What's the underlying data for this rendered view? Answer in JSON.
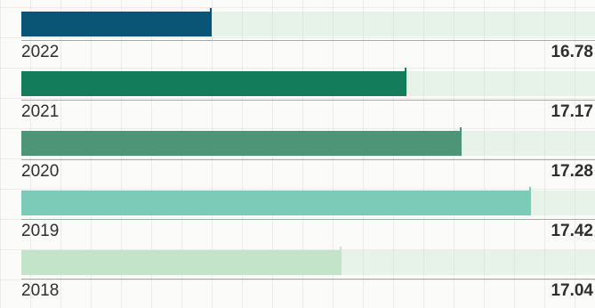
{
  "chart_data": {
    "type": "bar",
    "orientation": "horizontal",
    "categories": [
      "2022",
      "2021",
      "2020",
      "2019",
      "2018"
    ],
    "values": [
      16.78,
      17.17,
      17.28,
      17.42,
      17.04
    ],
    "xlim": [
      16.4,
      17.55
    ],
    "colors": [
      "#0a5475",
      "#137d5b",
      "#4e9477",
      "#7ccbb8",
      "#c4e4c9"
    ],
    "title": "",
    "xlabel": "",
    "ylabel": ""
  }
}
